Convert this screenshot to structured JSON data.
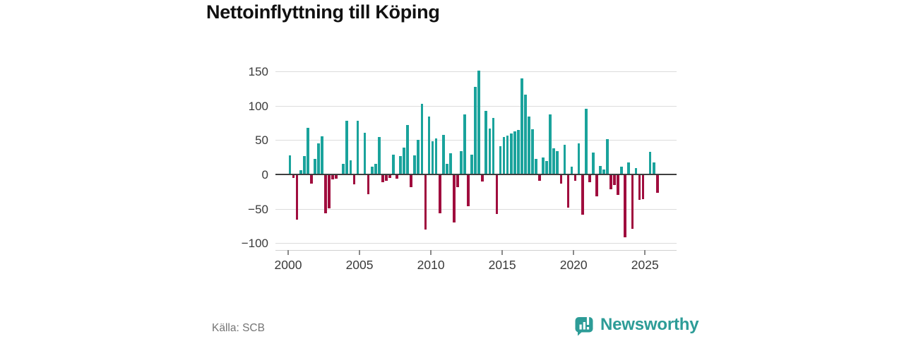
{
  "title": "Nettoinflyttning till Köping",
  "source": "Källa: SCB",
  "logo": {
    "brand": "Newsworthy"
  },
  "chart_data": {
    "type": "bar",
    "title": "Nettoinflyttning till Köping",
    "x_unit": "quarter",
    "start_year": 2000,
    "end_year": 2025,
    "x_tick_labels": [
      "2000",
      "2005",
      "2010",
      "2015",
      "2020",
      "2025"
    ],
    "y_tick_labels": [
      "150",
      "100",
      "50",
      "0",
      "−50",
      "−100"
    ],
    "y_ticks": [
      150,
      100,
      50,
      0,
      -50,
      -100
    ],
    "ylim": [
      -100,
      150
    ],
    "grid": true,
    "positive_color": "#1aa39c",
    "negative_color": "#a00d3e",
    "values": [
      28,
      -4,
      -65,
      6,
      27,
      68,
      -12,
      23,
      45,
      56,
      -56,
      -48,
      -6,
      -5,
      0,
      15,
      78,
      21,
      -13,
      78,
      0,
      61,
      -28,
      11,
      15,
      55,
      -10,
      -8,
      -4,
      29,
      -5,
      27,
      39,
      72,
      -17,
      28,
      50,
      103,
      -79,
      84,
      48,
      53,
      -56,
      58,
      15,
      31,
      -69,
      -17,
      34,
      87,
      -45,
      29,
      128,
      151,
      -9,
      93,
      67,
      82,
      -57,
      41,
      55,
      57,
      60,
      63,
      65,
      140,
      116,
      84,
      66,
      23,
      -8,
      25,
      20,
      88,
      38,
      34,
      -12,
      43,
      -47,
      11,
      -8,
      45,
      -58,
      96,
      -10,
      32,
      -31,
      12,
      7,
      52,
      -21,
      -14,
      -29,
      11,
      -90,
      18,
      -78,
      9,
      -36,
      -35,
      0,
      33,
      18,
      -26
    ]
  }
}
